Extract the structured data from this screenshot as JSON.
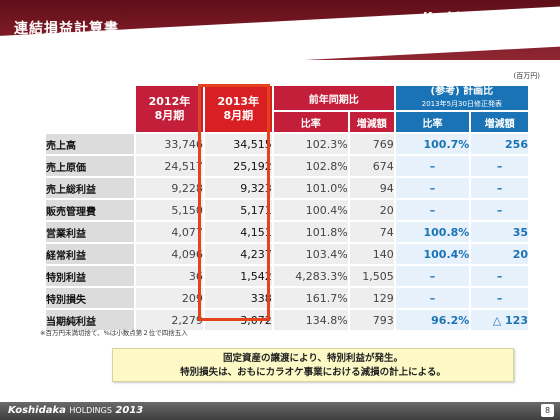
{
  "header": {
    "title": "連結損益計算書",
    "brand_logo": "Koshidaka",
    "brand_holdings": "HOLDINGS",
    "company_name": "株式会社 コシダカホールディングス"
  },
  "unit_note": "(百万円)",
  "table": {
    "col_2012_line1": "2012年",
    "col_2012_line2": "8月期",
    "col_2013_line1": "2013年",
    "col_2013_line2": "8月期",
    "yoy_header": "前年同期比",
    "ref_header": "(参考) 計画比",
    "ref_subheader": "2013年5月30日修正発表",
    "sub_ratio": "比率",
    "sub_diff": "増減額",
    "sub_ref_ratio": "比率",
    "sub_ref_diff": "増減額",
    "rows": [
      {
        "label": "売上高",
        "y2012": "33,746",
        "y2013": "34,515",
        "ratio": "102.3%",
        "diff": "769",
        "ref_ratio": "100.7%",
        "ref_diff": "256"
      },
      {
        "label": "売上原価",
        "y2012": "24,517",
        "y2013": "25,192",
        "ratio": "102.8%",
        "diff": "674",
        "ref_ratio": "–",
        "ref_diff": "–"
      },
      {
        "label": "売上総利益",
        "y2012": "9,228",
        "y2013": "9,323",
        "ratio": "101.0%",
        "diff": "94",
        "ref_ratio": "–",
        "ref_diff": "–"
      },
      {
        "label": "販売管理費",
        "y2012": "5,150",
        "y2013": "5,171",
        "ratio": "100.4%",
        "diff": "20",
        "ref_ratio": "–",
        "ref_diff": "–"
      },
      {
        "label": "営業利益",
        "y2012": "4,077",
        "y2013": "4,151",
        "ratio": "101.8%",
        "diff": "74",
        "ref_ratio": "100.8%",
        "ref_diff": "35"
      },
      {
        "label": "経常利益",
        "y2012": "4,096",
        "y2013": "4,237",
        "ratio": "103.4%",
        "diff": "140",
        "ref_ratio": "100.4%",
        "ref_diff": "20"
      },
      {
        "label": "特別利益",
        "y2012": "36",
        "y2013": "1,542",
        "ratio": "4,283.3%",
        "diff": "1,505",
        "ref_ratio": "–",
        "ref_diff": "–"
      },
      {
        "label": "特別損失",
        "y2012": "209",
        "y2013": "338",
        "ratio": "161.7%",
        "diff": "129",
        "ref_ratio": "–",
        "ref_diff": "–"
      },
      {
        "label": "当期純利益",
        "y2012": "2,279",
        "y2013": "3,072",
        "ratio": "134.8%",
        "diff": "793",
        "ref_ratio": "96.2%",
        "ref_diff": "△ 123"
      }
    ]
  },
  "footnote": "※百万円未満切捨て、%は小数点第２位で四捨五入",
  "callout": {
    "line1": "固定資産の譲渡により、特別利益が発生。",
    "line2": "特別損失は、おもにカラオケ事業における減損の計上による。"
  },
  "footer": {
    "logo": "Koshidaka",
    "holdings": "HOLDINGS",
    "year": "2013",
    "page": "8"
  },
  "colors": {
    "header_bg": "#7d1a26",
    "period_header": "#c31f3a",
    "ref_header": "#1a73b5",
    "highlight_border": "#e3421b",
    "callout_bg": "#fcf9c6"
  }
}
